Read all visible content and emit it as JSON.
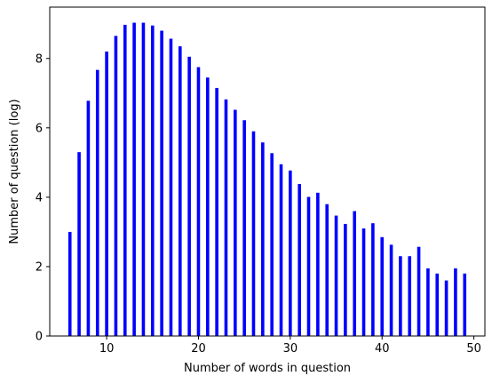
{
  "chart_data": {
    "type": "bar",
    "title": "",
    "xlabel": "Number of words in question",
    "ylabel": "Number of question (log)",
    "x": [
      6,
      7,
      8,
      9,
      10,
      11,
      12,
      13,
      14,
      15,
      16,
      17,
      18,
      19,
      20,
      21,
      22,
      23,
      24,
      25,
      26,
      27,
      28,
      29,
      30,
      31,
      32,
      33,
      34,
      35,
      36,
      37,
      38,
      39,
      40,
      41,
      42,
      43,
      44,
      45,
      46,
      47,
      48,
      49
    ],
    "values": [
      3.0,
      5.3,
      6.78,
      7.67,
      8.2,
      8.65,
      8.97,
      9.03,
      9.03,
      8.95,
      8.8,
      8.57,
      8.35,
      8.05,
      7.75,
      7.45,
      7.15,
      6.82,
      6.52,
      6.22,
      5.9,
      5.58,
      5.27,
      4.95,
      4.77,
      4.38,
      4.01,
      4.13,
      3.8,
      3.47,
      3.23,
      3.6,
      3.1,
      3.25,
      2.85,
      2.63,
      2.3,
      2.3,
      2.57,
      1.95,
      1.8,
      1.6,
      1.95,
      1.8
    ],
    "xlim": [
      3.8,
      51.2
    ],
    "ylim": [
      0,
      9.48
    ],
    "xticks": [
      10,
      20,
      30,
      40,
      50
    ],
    "yticks": [
      0,
      2,
      4,
      6,
      8
    ],
    "bar_color": "#0000ff",
    "grid": false,
    "legend": "none"
  }
}
